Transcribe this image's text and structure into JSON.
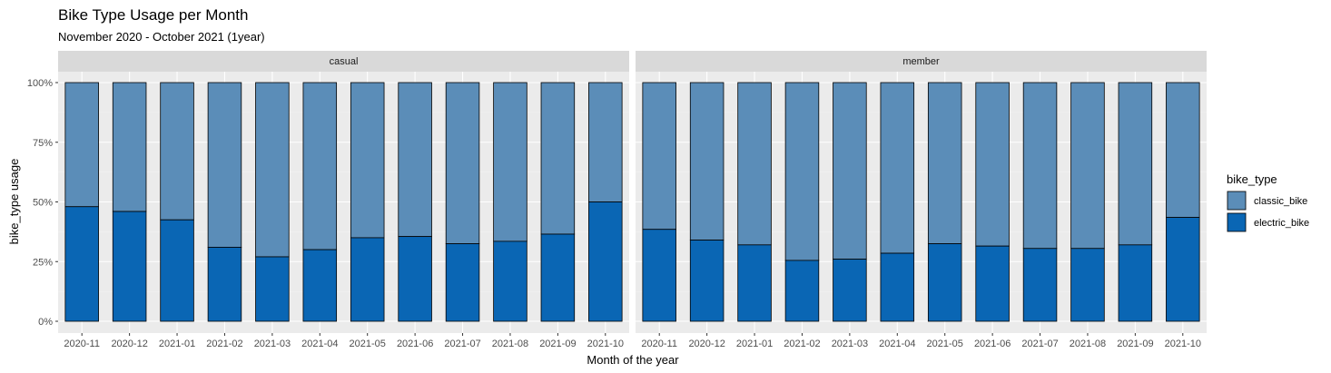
{
  "chart_data": {
    "type": "bar",
    "stacked": true,
    "normalized": true,
    "title": "Bike Type Usage per Month",
    "subtitle": "November 2020 - October 2021 (1year)",
    "xlabel": "Month of the year",
    "ylabel": "bike_type usage",
    "yticks": [
      "0%",
      "25%",
      "50%",
      "75%",
      "100%"
    ],
    "ylim": [
      0,
      1
    ],
    "grid": true,
    "legend": {
      "title": "bike_type",
      "position": "right",
      "entries": [
        {
          "name": "classic_bike",
          "color": "#5b8db8"
        },
        {
          "name": "electric_bike",
          "color": "#0a66b4"
        }
      ]
    },
    "categories": [
      "2020-11",
      "2020-12",
      "2021-01",
      "2021-02",
      "2021-03",
      "2021-04",
      "2021-05",
      "2021-06",
      "2021-07",
      "2021-08",
      "2021-09",
      "2021-10"
    ],
    "facets": [
      {
        "name": "casual",
        "series": [
          {
            "name": "electric_bike",
            "values": [
              0.48,
              0.46,
              0.425,
              0.31,
              0.27,
              0.3,
              0.35,
              0.355,
              0.325,
              0.335,
              0.365,
              0.5
            ]
          },
          {
            "name": "classic_bike",
            "values": [
              0.52,
              0.54,
              0.575,
              0.69,
              0.73,
              0.7,
              0.65,
              0.645,
              0.675,
              0.665,
              0.635,
              0.5
            ]
          }
        ]
      },
      {
        "name": "member",
        "series": [
          {
            "name": "electric_bike",
            "values": [
              0.385,
              0.34,
              0.32,
              0.255,
              0.26,
              0.285,
              0.325,
              0.315,
              0.305,
              0.305,
              0.32,
              0.435
            ]
          },
          {
            "name": "classic_bike",
            "values": [
              0.615,
              0.66,
              0.68,
              0.745,
              0.74,
              0.715,
              0.675,
              0.685,
              0.695,
              0.695,
              0.68,
              0.565
            ]
          }
        ]
      }
    ]
  }
}
